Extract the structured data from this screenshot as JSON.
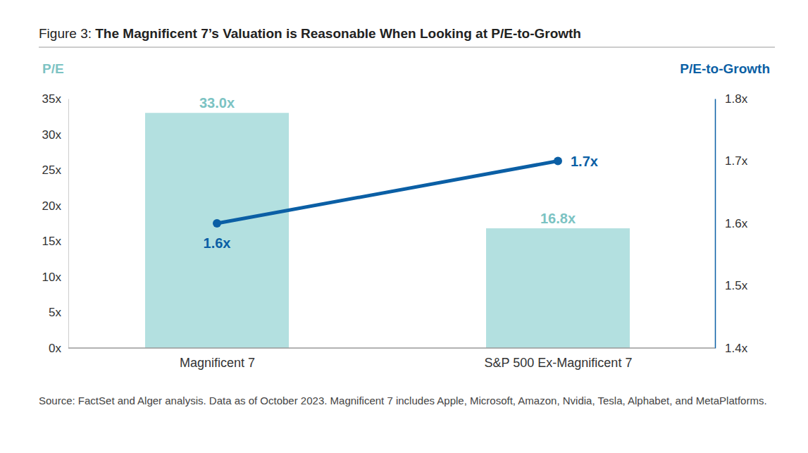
{
  "chart_data": {
    "type": "bar",
    "title": "Figure 3: The Magnificent 7’s Valuation is Reasonable When Looking at P/E-to-Growth",
    "ylabel": "P/E",
    "y2label": "P/E-to-Growth",
    "note": "Source: FactSet and Alger analysis. Data as of October 2023. Magnificent 7 includes Apple, Microsoft, Amazon, Nvidia, Tesla, Alphabet, and MetaPlatforms.",
    "categories": [
      "Magnificent 7",
      "S&P 500 Ex-Magnificent 7"
    ],
    "series": [
      {
        "type": "bar",
        "color": "#b3e0e0",
        "values": [
          33.0,
          16.8
        ],
        "value_labels": [
          "33.0x",
          "16.8x"
        ]
      },
      {
        "type": "line",
        "axis": "y2",
        "color": "#0b5fa5",
        "marker": "circle",
        "values": [
          1.6,
          1.7
        ],
        "value_labels": [
          "1.6x",
          "1.7x"
        ]
      }
    ],
    "ylim": [
      0,
      35
    ],
    "yticks": [
      {
        "value": 0,
        "label": "0x"
      },
      {
        "value": 5,
        "label": "5x"
      },
      {
        "value": 10,
        "label": "10x"
      },
      {
        "value": 15,
        "label": "15x"
      },
      {
        "value": 20,
        "label": "20x"
      },
      {
        "value": 25,
        "label": "25x"
      },
      {
        "value": 30,
        "label": "30x"
      },
      {
        "value": 35,
        "label": "35x"
      }
    ],
    "y2lim": [
      1.4,
      1.8
    ],
    "y2ticks": [
      {
        "value": 1.4,
        "label": "1.4x"
      },
      {
        "value": 1.5,
        "label": "1.5x"
      },
      {
        "value": 1.6,
        "label": "1.6x"
      },
      {
        "value": 1.7,
        "label": "1.7x"
      },
      {
        "value": 1.8,
        "label": "1.8x"
      }
    ],
    "data_labels": true,
    "grid": false
  }
}
